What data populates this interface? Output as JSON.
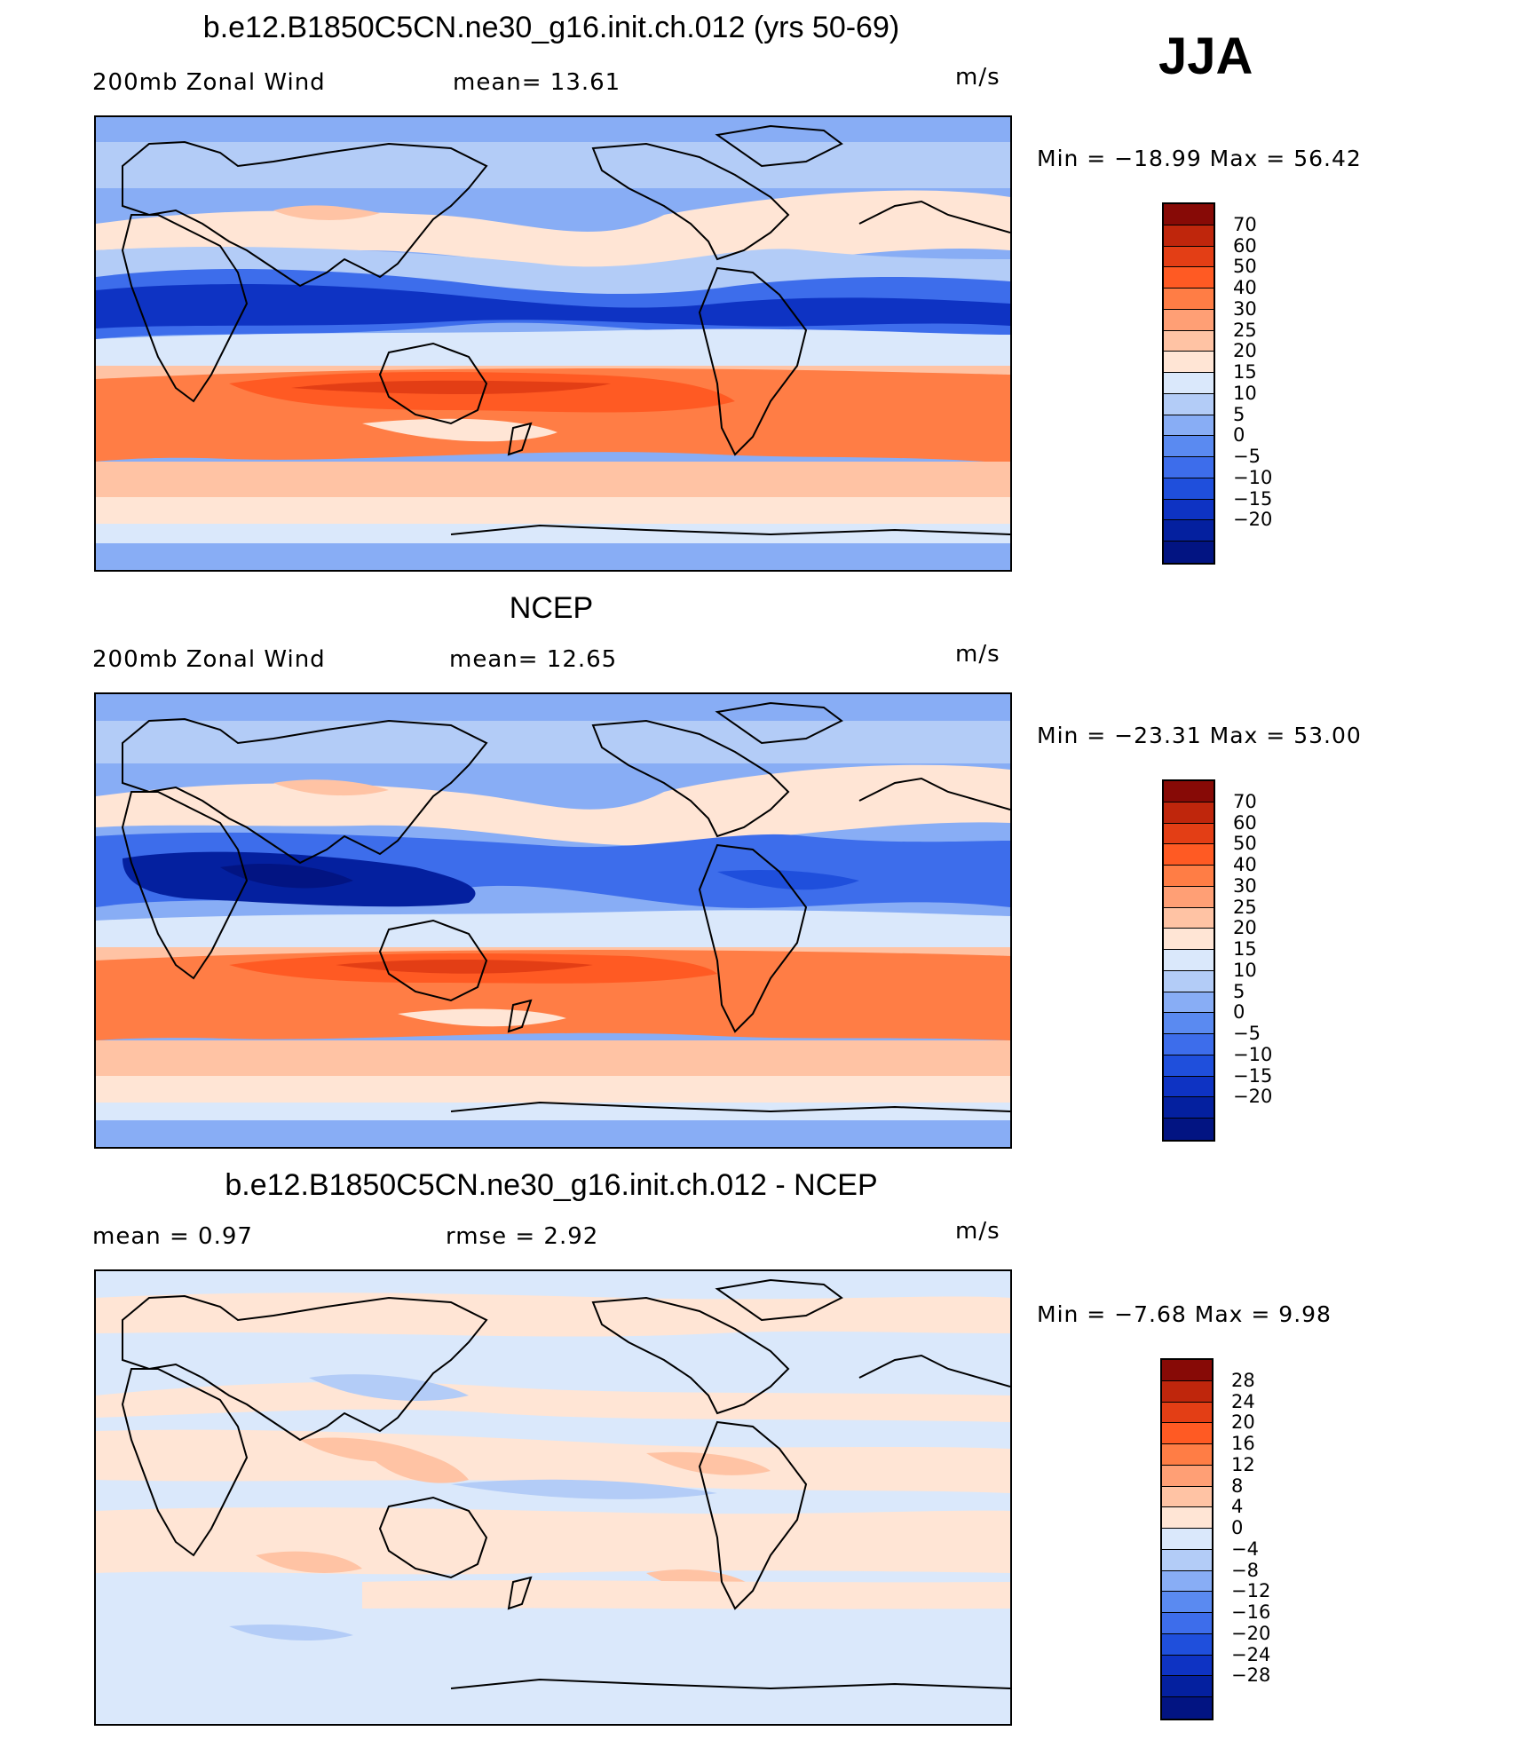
{
  "season": "JJA",
  "units": "m/s",
  "colors": {
    "wind": [
      "#870a06",
      "#bf260c",
      "#e33e15",
      "#ff5a23",
      "#ff7d45",
      "#ff9f75",
      "#ffc3a4",
      "#ffe5d5",
      "#dae8fb",
      "#b3ccf7",
      "#88adf5",
      "#5a8af1",
      "#3d6deb",
      "#1f4fdc",
      "#0e33c3",
      "#04209f",
      "#021482"
    ],
    "diff": [
      "#870a06",
      "#bf260c",
      "#e33e15",
      "#ff5a23",
      "#ff7d45",
      "#ff9f75",
      "#ffc3a4",
      "#ffe5d5",
      "#dae8fb",
      "#b3ccf7",
      "#88adf5",
      "#5a8af1",
      "#3d6deb",
      "#1f4fdc",
      "#0e33c3",
      "#04209f",
      "#021482"
    ]
  },
  "panels": [
    {
      "title": "b.e12.B1850C5CN.ne30_g16.init.ch.012 (yrs 50-69)",
      "left_label": "200mb  Zonal  Wind",
      "mid_label": "mean=   13.61",
      "units": "m/s",
      "minmax": "Min  =  −18.99  Max  =    56.42",
      "ticks": [
        "70",
        "60",
        "50",
        "40",
        "30",
        "25",
        "20",
        "15",
        "10",
        "5",
        "0",
        "−5",
        "−10",
        "−15",
        "−20"
      ]
    },
    {
      "title": "NCEP",
      "left_label": "200mb  Zonal  Wind",
      "mid_label": "mean=   12.65",
      "units": "m/s",
      "minmax": "Min  =  −23.31  Max  =    53.00",
      "ticks": [
        "70",
        "60",
        "50",
        "40",
        "30",
        "25",
        "20",
        "15",
        "10",
        "5",
        "0",
        "−5",
        "−10",
        "−15",
        "−20"
      ]
    },
    {
      "title": "b.e12.B1850C5CN.ne30_g16.init.ch.012 - NCEP",
      "left_label": "mean  =     0.97",
      "mid_label": "rmse  =     2.92",
      "units": "m/s",
      "minmax": "Min  =    −7.68  Max  =     9.98",
      "ticks": [
        "28",
        "24",
        "20",
        "16",
        "12",
        "8",
        "4",
        "0",
        "−4",
        "−8",
        "−12",
        "−16",
        "−20",
        "−24",
        "−28"
      ]
    }
  ]
}
